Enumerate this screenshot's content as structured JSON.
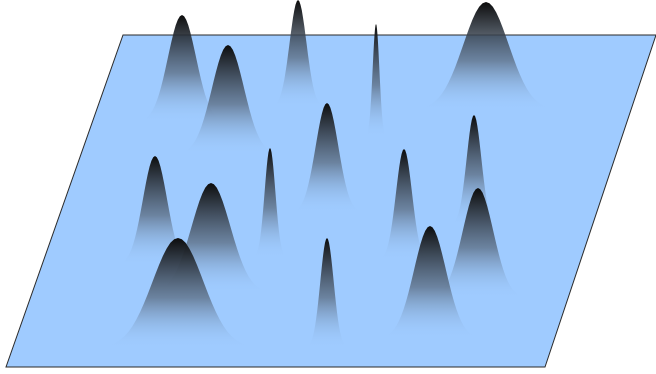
{
  "colors": {
    "plane_fill": "#9fcbff",
    "plane_stroke": "#2a2a2a",
    "peak_dark": "#0c0c0c",
    "peak_light": "#9fcbff",
    "background": "#ffffff"
  },
  "peaks_count_note": "",
  "peaks": [
    {
      "id": "peak-1"
    },
    {
      "id": "peak-2"
    },
    {
      "id": "peak-3"
    },
    {
      "id": "peak-4"
    },
    {
      "id": "peak-5"
    },
    {
      "id": "peak-6"
    },
    {
      "id": "peak-7"
    },
    {
      "id": "peak-8"
    },
    {
      "id": "peak-9"
    },
    {
      "id": "peak-10"
    },
    {
      "id": "peak-11"
    },
    {
      "id": "peak-12"
    },
    {
      "id": "peak-13"
    },
    {
      "id": "peak-14"
    },
    {
      "id": "peak-15"
    },
    {
      "id": "peak-16"
    }
  ]
}
